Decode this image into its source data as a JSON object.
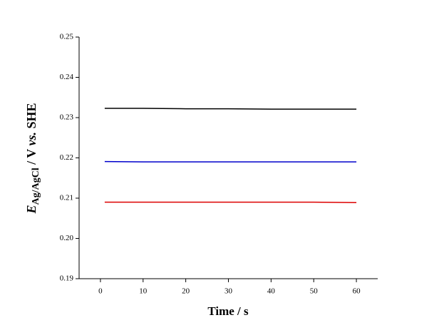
{
  "chart_data": {
    "type": "line",
    "xlabel": "Time / s",
    "ylabel": {
      "symbol": "E",
      "subscript": "Ag/AgCl",
      "unit": " / V ",
      "vs": "vs.",
      "ref": " SHE"
    },
    "x": [
      1,
      10,
      20,
      30,
      40,
      50,
      60
    ],
    "series": [
      {
        "color": "#000000",
        "values": [
          0.2323,
          0.2323,
          0.2322,
          0.2322,
          0.2321,
          0.2321,
          0.2321
        ]
      },
      {
        "color": "#0000cc",
        "values": [
          0.2191,
          0.219,
          0.219,
          0.219,
          0.219,
          0.219,
          0.219
        ]
      },
      {
        "color": "#dd0000",
        "values": [
          0.209,
          0.209,
          0.209,
          0.209,
          0.209,
          0.209,
          0.2089
        ]
      }
    ],
    "xlim": [
      -5,
      65
    ],
    "xticks": [
      0,
      10,
      20,
      30,
      40,
      50,
      60
    ],
    "ylim": [
      0.19,
      0.25
    ],
    "yticks": [
      {
        "value": 0.19,
        "label": "0.19"
      },
      {
        "value": 0.2,
        "label": "0.20"
      },
      {
        "value": 0.21,
        "label": "0.21"
      },
      {
        "value": 0.22,
        "label": "0.22"
      },
      {
        "value": 0.23,
        "label": "0.23"
      },
      {
        "value": 0.24,
        "label": "0.24"
      },
      {
        "value": 0.25,
        "label": "0.25"
      }
    ]
  }
}
